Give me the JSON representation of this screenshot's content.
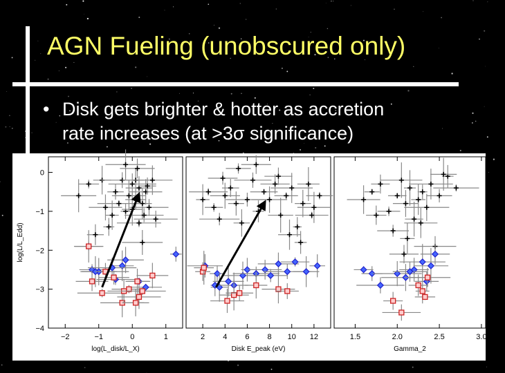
{
  "slide": {
    "title": "AGN Fueling (unobscured only)",
    "bullet_marker": "•",
    "bullet_line1": "Disk gets brighter & hotter as accretion",
    "bullet_line2": "rate increases (at >3σ significance)"
  },
  "colors": {
    "title": "#ffff66",
    "text": "#ffffff",
    "background": "#000000",
    "black_points": "#000000",
    "blue_points": "#2222cc",
    "red_points": "#cc2222",
    "error_bars": "#888888"
  },
  "chart_data": [
    {
      "type": "scatter",
      "panel": "left",
      "xlabel": "log(L_disk/L_X)",
      "ylabel": "log(L/L_Edd)",
      "xlim": [
        -2.5,
        1.5
      ],
      "ylim": [
        -4,
        0.4
      ],
      "xticks": [
        "−2",
        "−1",
        "0",
        "1"
      ],
      "xtick_values": [
        -2,
        -1,
        0,
        1
      ],
      "yticks": [
        "0",
        "−1",
        "−2",
        "−3",
        "−4"
      ],
      "ytick_values": [
        0,
        -1,
        -2,
        -3,
        -4
      ],
      "arrow": {
        "from": [
          -0.9,
          -2.95
        ],
        "to": [
          0.2,
          -0.55
        ]
      },
      "series": [
        {
          "group": "black",
          "x": [
            -1.6,
            -1.3,
            -0.9,
            -0.5,
            -0.3,
            -0.1,
            0,
            0.1,
            0.2,
            0.3,
            -0.6,
            -0.2,
            0.1,
            0.4,
            0.5,
            -0.4,
            -0.7,
            0.2,
            0.3,
            0.7,
            0.6,
            -0.8,
            0.0,
            -0.2,
            0.15,
            0.35,
            -1.1,
            0.45
          ],
          "y": [
            -0.6,
            -0.3,
            -0.2,
            -0.5,
            -0.2,
            -0.6,
            -0.3,
            -0.7,
            -0.4,
            -0.8,
            -1.1,
            -1.0,
            -0.2,
            -0.5,
            -0.9,
            -0.8,
            -1.4,
            -1.3,
            -1.8,
            -1.2,
            -0.2,
            -0.9,
            -0.95,
            0.2,
            0.1,
            -1.1,
            -1.6,
            -0.35
          ]
        },
        {
          "group": "blue",
          "x": [
            -1.3,
            -1.2,
            -1.0,
            -0.8,
            -0.5,
            -0.3,
            0.2,
            -1.1,
            0.4,
            1.3,
            -0.6,
            -0.2
          ],
          "y": [
            -1.9,
            -2.5,
            -2.55,
            -2.55,
            -2.75,
            -2.4,
            -2.8,
            -2.55,
            -2.95,
            -2.1,
            -2.45,
            -2.25
          ]
        },
        {
          "group": "red",
          "x": [
            -1.3,
            -1.2,
            -0.9,
            -0.3,
            -0.1,
            0.2,
            0.6,
            0.1,
            -0.25,
            0.3,
            0.15,
            -0.55,
            -0.8
          ],
          "y": [
            -1.9,
            -2.8,
            -3.1,
            -3.35,
            -3.0,
            -3.2,
            -2.65,
            -3.35,
            -3.05,
            -3.05,
            -2.8,
            -2.7,
            -2.55
          ]
        }
      ]
    },
    {
      "type": "scatter",
      "panel": "middle",
      "xlabel": "Disk E_peak (eV)",
      "xlim": [
        0.5,
        13.5
      ],
      "ylim": [
        -4,
        0.4
      ],
      "xticks": [
        "2",
        "4",
        "6",
        "8",
        "10",
        "12"
      ],
      "xtick_values": [
        2,
        4,
        6,
        8,
        10,
        12
      ],
      "arrow": {
        "from": [
          3.2,
          -2.95
        ],
        "to": [
          7.6,
          -0.75
        ]
      },
      "series": [
        {
          "group": "black",
          "x": [
            2.0,
            2.5,
            3.0,
            3.5,
            4.0,
            4.5,
            5.0,
            5.5,
            6.0,
            6.5,
            7.0,
            7.5,
            8.0,
            8.5,
            9.0,
            9.5,
            10.0,
            10.5,
            11.0,
            11.5,
            12.0,
            12.5,
            5.2,
            6.8,
            8.8,
            9.8,
            10.8,
            11.8,
            3.8
          ],
          "y": [
            -0.7,
            -0.5,
            -0.9,
            -1.2,
            -0.6,
            -0.4,
            -0.8,
            -1.3,
            -0.7,
            -0.2,
            -1.0,
            -0.5,
            -0.7,
            -0.3,
            -1.1,
            -0.6,
            -0.4,
            -1.4,
            -0.8,
            -0.3,
            -0.9,
            -0.6,
            0.1,
            0.2,
            -0.1,
            -1.6,
            -1.8,
            -1.1,
            -0.15
          ]
        },
        {
          "group": "blue",
          "x": [
            2.2,
            3.3,
            3.5,
            4.3,
            4.8,
            5.6,
            6.0,
            6.8,
            7.6,
            8.1,
            8.8,
            9.6,
            10.3,
            11.3,
            12.3,
            3.1
          ],
          "y": [
            -2.4,
            -2.6,
            -2.95,
            -2.8,
            -2.9,
            -2.65,
            -2.5,
            -2.6,
            -2.5,
            -2.65,
            -2.35,
            -2.55,
            -2.3,
            -2.55,
            -2.4,
            -2.9
          ]
        },
        {
          "group": "red",
          "x": [
            2.0,
            4.2,
            4.8,
            6.8,
            8.8,
            9.6,
            2.1,
            5.3
          ],
          "y": [
            -2.55,
            -3.3,
            -3.15,
            -2.9,
            -3.0,
            -3.05,
            -2.45,
            -3.1
          ]
        }
      ]
    },
    {
      "type": "scatter",
      "panel": "right",
      "xlabel": "Gamma_2",
      "xlim": [
        1.25,
        3.05
      ],
      "ylim": [
        -4,
        0.4
      ],
      "xticks": [
        "1.5",
        "2.0",
        "2.5",
        "3.0"
      ],
      "xtick_values": [
        1.5,
        2.0,
        2.5,
        3.0
      ],
      "series": [
        {
          "group": "black",
          "x": [
            1.6,
            1.7,
            1.8,
            1.9,
            2.0,
            2.05,
            2.1,
            2.15,
            2.2,
            2.25,
            2.3,
            2.35,
            2.4,
            2.5,
            2.6,
            2.7,
            1.95,
            2.12,
            2.28,
            2.45,
            2.55,
            1.75,
            2.08
          ],
          "y": [
            -0.7,
            -0.5,
            -0.3,
            -1.0,
            -0.6,
            -0.2,
            -0.8,
            -0.4,
            -1.2,
            -0.7,
            -0.5,
            -0.9,
            -0.3,
            -0.6,
            -0.1,
            -0.4,
            -1.5,
            -1.7,
            -1.3,
            -1.9,
            -0.05,
            -1.1,
            -2.1
          ]
        },
        {
          "group": "blue",
          "x": [
            1.6,
            1.7,
            1.8,
            2.0,
            2.1,
            2.2,
            2.3,
            2.4,
            2.45,
            2.35,
            2.15
          ],
          "y": [
            -2.5,
            -2.6,
            -2.9,
            -2.6,
            -2.7,
            -2.5,
            -2.3,
            -2.4,
            -2.1,
            -2.8,
            -2.55
          ]
        },
        {
          "group": "red",
          "x": [
            1.95,
            2.05,
            2.25,
            2.3,
            2.33,
            2.36
          ],
          "y": [
            -3.3,
            -3.6,
            -2.9,
            -3.05,
            -3.2,
            -2.7
          ]
        }
      ]
    }
  ]
}
